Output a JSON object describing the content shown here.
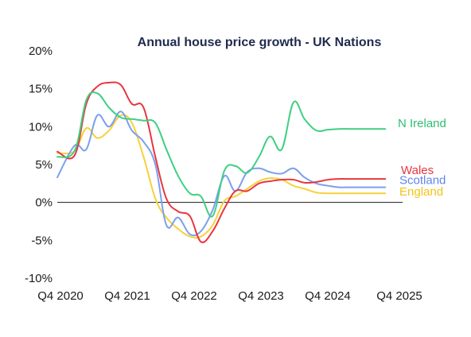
{
  "chart_data": {
    "type": "line",
    "title": "Annual house price growth - UK Nations",
    "xlabel": "",
    "ylabel": "",
    "x_ticks": [
      "Q4 2020",
      "Q4 2021",
      "Q4 2022",
      "Q4 2023",
      "Q4 2024",
      "Q4 2025"
    ],
    "y_ticks": [
      "20%",
      "15%",
      "10%",
      "5%",
      "0%",
      "-5%",
      "-10%"
    ],
    "y_tick_values": [
      20,
      15,
      10,
      5,
      0,
      -5,
      -10
    ],
    "ylim": [
      -10,
      20
    ],
    "xlim": [
      2020.75,
      2025.75
    ],
    "grid": false,
    "zero_line": true,
    "legend": "inline labels at right end of lines",
    "series": [
      {
        "name": "N Ireland",
        "color": "#3fcf82",
        "label_color": "#2ebd73",
        "x": [
          2020.75,
          2021.0,
          2021.17,
          2021.33,
          2021.5,
          2021.67,
          2021.83,
          2022.0,
          2022.17,
          2022.33,
          2022.5,
          2022.67,
          2022.83,
          2023.0,
          2023.17,
          2023.33,
          2023.5,
          2023.67,
          2023.83,
          2024.0,
          2024.17,
          2024.33,
          2024.5,
          2024.67,
          2024.83,
          2025.0,
          2025.17,
          2025.33,
          2025.5
        ],
        "y": [
          6.0,
          6.8,
          13.5,
          14.4,
          12.5,
          11.2,
          11.0,
          10.8,
          10.5,
          7.0,
          3.5,
          1.2,
          0.8,
          -1.8,
          4.2,
          4.8,
          3.9,
          6.0,
          8.7,
          7.0,
          13.2,
          11.0,
          9.5,
          9.6,
          9.7,
          9.7,
          9.7,
          9.7,
          9.7
        ]
      },
      {
        "name": "Wales",
        "color": "#e8353f",
        "label_color": "#e8353f",
        "x": [
          2020.75,
          2021.0,
          2021.17,
          2021.33,
          2021.5,
          2021.67,
          2021.83,
          2022.0,
          2022.17,
          2022.33,
          2022.5,
          2022.67,
          2022.83,
          2023.0,
          2023.17,
          2023.33,
          2023.5,
          2023.67,
          2023.83,
          2024.0,
          2024.17,
          2024.33,
          2024.5,
          2024.67,
          2024.83,
          2025.0,
          2025.17,
          2025.33,
          2025.5
        ],
        "y": [
          6.7,
          6.2,
          13.0,
          15.3,
          15.8,
          15.5,
          13.0,
          12.5,
          6.0,
          0.5,
          -1.2,
          -1.8,
          -5.2,
          -3.8,
          -0.8,
          1.5,
          1.5,
          2.5,
          2.8,
          3.0,
          3.0,
          2.6,
          2.7,
          3.0,
          3.1,
          3.1,
          3.1,
          3.1,
          3.1
        ]
      },
      {
        "name": "Scotland",
        "color": "#7b9ff0",
        "label_color": "#5f86e8",
        "x": [
          2020.75,
          2021.0,
          2021.17,
          2021.33,
          2021.5,
          2021.67,
          2021.83,
          2022.0,
          2022.17,
          2022.33,
          2022.5,
          2022.67,
          2022.83,
          2023.0,
          2023.17,
          2023.33,
          2023.5,
          2023.67,
          2023.83,
          2024.0,
          2024.17,
          2024.33,
          2024.5,
          2024.67,
          2024.83,
          2025.0,
          2025.17,
          2025.33,
          2025.5
        ],
        "y": [
          3.3,
          7.5,
          7.0,
          11.5,
          10.0,
          12.0,
          9.5,
          8.0,
          5.0,
          -3.0,
          -2.0,
          -4.2,
          -3.8,
          -1.0,
          3.5,
          1.5,
          4.0,
          4.5,
          4.0,
          3.8,
          4.5,
          3.3,
          2.5,
          2.2,
          2.0,
          2.0,
          2.0,
          2.0,
          2.0
        ]
      },
      {
        "name": "England",
        "color": "#f7d13a",
        "label_color": "#f2c318",
        "x": [
          2020.75,
          2021.0,
          2021.17,
          2021.33,
          2021.5,
          2021.67,
          2021.83,
          2022.0,
          2022.17,
          2022.33,
          2022.5,
          2022.67,
          2022.83,
          2023.0,
          2023.17,
          2023.33,
          2023.5,
          2023.67,
          2023.83,
          2024.0,
          2024.17,
          2024.33,
          2024.5,
          2024.67,
          2024.83,
          2025.0,
          2025.17,
          2025.33,
          2025.5
        ],
        "y": [
          6.5,
          6.8,
          9.8,
          8.5,
          9.5,
          11.5,
          10.5,
          6.0,
          0.5,
          -2.0,
          -3.5,
          -4.5,
          -4.5,
          -3.0,
          0.2,
          0.8,
          1.8,
          2.8,
          3.2,
          3.0,
          2.2,
          1.8,
          1.3,
          1.2,
          1.2,
          1.2,
          1.2,
          1.2,
          1.2
        ]
      }
    ]
  }
}
